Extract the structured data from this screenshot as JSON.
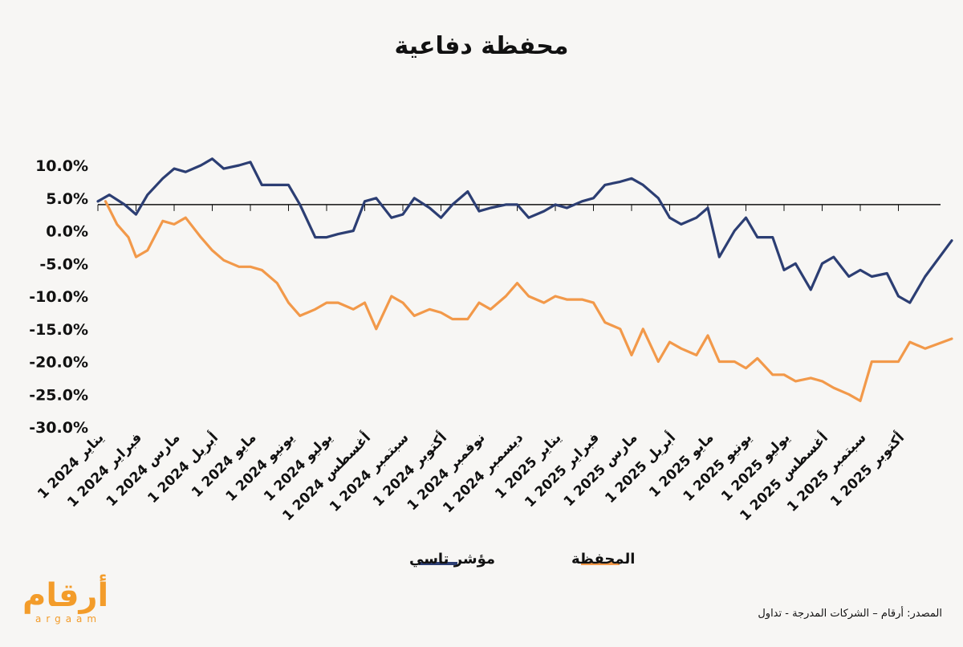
{
  "title": "محفظة دفاعية",
  "source": "المصدر: أرقام – الشركات المدرجة - تداول",
  "logo": {
    "arabic": "أرقام",
    "latin": "argaam"
  },
  "colors": {
    "index": "#2c3e73",
    "portfolio": "#f2994a",
    "background": "#f7f6f4"
  },
  "chart_data": {
    "type": "line",
    "title": "محفظة دفاعية",
    "y_unit": "%",
    "ylim": [
      -30,
      10
    ],
    "y_ticks": [
      "10.0%",
      "5.0%",
      "0.0%",
      "-5.0%",
      "-10.0%",
      "-15.0%",
      "-20.0%",
      "-25.0%",
      "-30.0%"
    ],
    "zero_line_value": 4.0,
    "grid": false,
    "legend_position": "bottom",
    "categories": [
      "1 يناير 2024",
      "1 فبراير 2024",
      "1 مارس 2024",
      "1 أبريل 2024",
      "1 مايو 2024",
      "1 يونيو 2024",
      "1 يوليو 2024",
      "1 أغسطس 2024",
      "1 سبتمبر 2024",
      "1 أكتوبر 2024",
      "1 نوفمبر 2024",
      "1 ديسمبر 2024",
      "1 يناير 2025",
      "1 فبراير 2025",
      "1 مارس 2025",
      "1 أبريل 2025",
      "1 مايو 2025",
      "1 يونيو 2025",
      "1 يوليو 2025",
      "1 أغسطس 2025",
      "1 سبتمبر 2025",
      "1 أكتوبر 2025"
    ],
    "series": [
      {
        "name": "مؤشر تاسي",
        "color": "#2c3e73",
        "x": [
          0,
          0.3,
          0.7,
          1,
          1.3,
          1.7,
          2,
          2.3,
          2.7,
          3,
          3.3,
          3.7,
          4,
          4.3,
          4.7,
          5,
          5.3,
          5.7,
          6,
          6.3,
          6.7,
          7,
          7.3,
          7.7,
          8,
          8.3,
          8.7,
          9,
          9.3,
          9.7,
          10,
          10.3,
          10.7,
          11,
          11.3,
          11.7,
          12,
          12.3,
          12.7,
          13,
          13.3,
          13.7,
          14,
          14.3,
          14.7,
          15,
          15.3,
          15.7,
          16,
          16.3,
          16.7,
          17,
          17.3,
          17.7,
          18,
          18.3,
          18.7,
          19,
          19.3,
          19.7,
          20,
          20.3,
          20.7,
          21,
          21.3,
          21.7,
          22.4
        ],
        "y": [
          4.5,
          5.5,
          4,
          2.5,
          5.5,
          8,
          9.5,
          9,
          10,
          11,
          9.5,
          10,
          10.5,
          7,
          7,
          7,
          4,
          -1,
          -1,
          -0.5,
          0,
          4.5,
          5,
          2,
          2.5,
          5,
          3.5,
          2,
          4,
          6,
          3,
          3.5,
          4,
          4,
          2,
          3,
          4,
          3.5,
          4.5,
          5,
          7,
          7.5,
          8,
          7,
          5,
          2,
          1,
          2,
          3.5,
          -4,
          0,
          2,
          -1,
          -1,
          -6,
          -5,
          -9,
          -5,
          -4,
          -7,
          -6,
          -7,
          -6.5,
          -10,
          -11,
          -7,
          -1.5
        ]
      },
      {
        "name": "المحفظة",
        "color": "#f2994a",
        "x": [
          0.2,
          0.5,
          0.8,
          1,
          1.3,
          1.7,
          2,
          2.3,
          2.7,
          3,
          3.3,
          3.7,
          4,
          4.3,
          4.7,
          5,
          5.3,
          5.7,
          6,
          6.3,
          6.7,
          7,
          7.3,
          7.7,
          8,
          8.3,
          8.7,
          9,
          9.3,
          9.7,
          10,
          10.3,
          10.7,
          11,
          11.3,
          11.7,
          12,
          12.3,
          12.7,
          13,
          13.3,
          13.7,
          14,
          14.3,
          14.7,
          15,
          15.3,
          15.7,
          16,
          16.3,
          16.7,
          17,
          17.3,
          17.7,
          18,
          18.3,
          18.7,
          19,
          19.3,
          19.7,
          20,
          20.3,
          20.7,
          21,
          21.3,
          21.7,
          22.4
        ],
        "y": [
          4.5,
          1,
          -1,
          -4,
          -3,
          1.5,
          1,
          2,
          -1,
          -3,
          -4.5,
          -5.5,
          -5.5,
          -6,
          -8,
          -11,
          -13,
          -12,
          -11,
          -11,
          -12,
          -11,
          -15,
          -10,
          -11,
          -13,
          -12,
          -12.5,
          -13.5,
          -13.5,
          -11,
          -12,
          -10,
          -8,
          -10,
          -11,
          -10,
          -10.5,
          -10.5,
          -11,
          -14,
          -15,
          -19,
          -15,
          -20,
          -17,
          -18,
          -19,
          -16,
          -20,
          -20,
          -21,
          -19.5,
          -22,
          -22,
          -23,
          -22.5,
          -23,
          -24,
          -25,
          -26,
          -20,
          -20,
          -20,
          -17,
          -18,
          -16.5
        ]
      }
    ]
  }
}
